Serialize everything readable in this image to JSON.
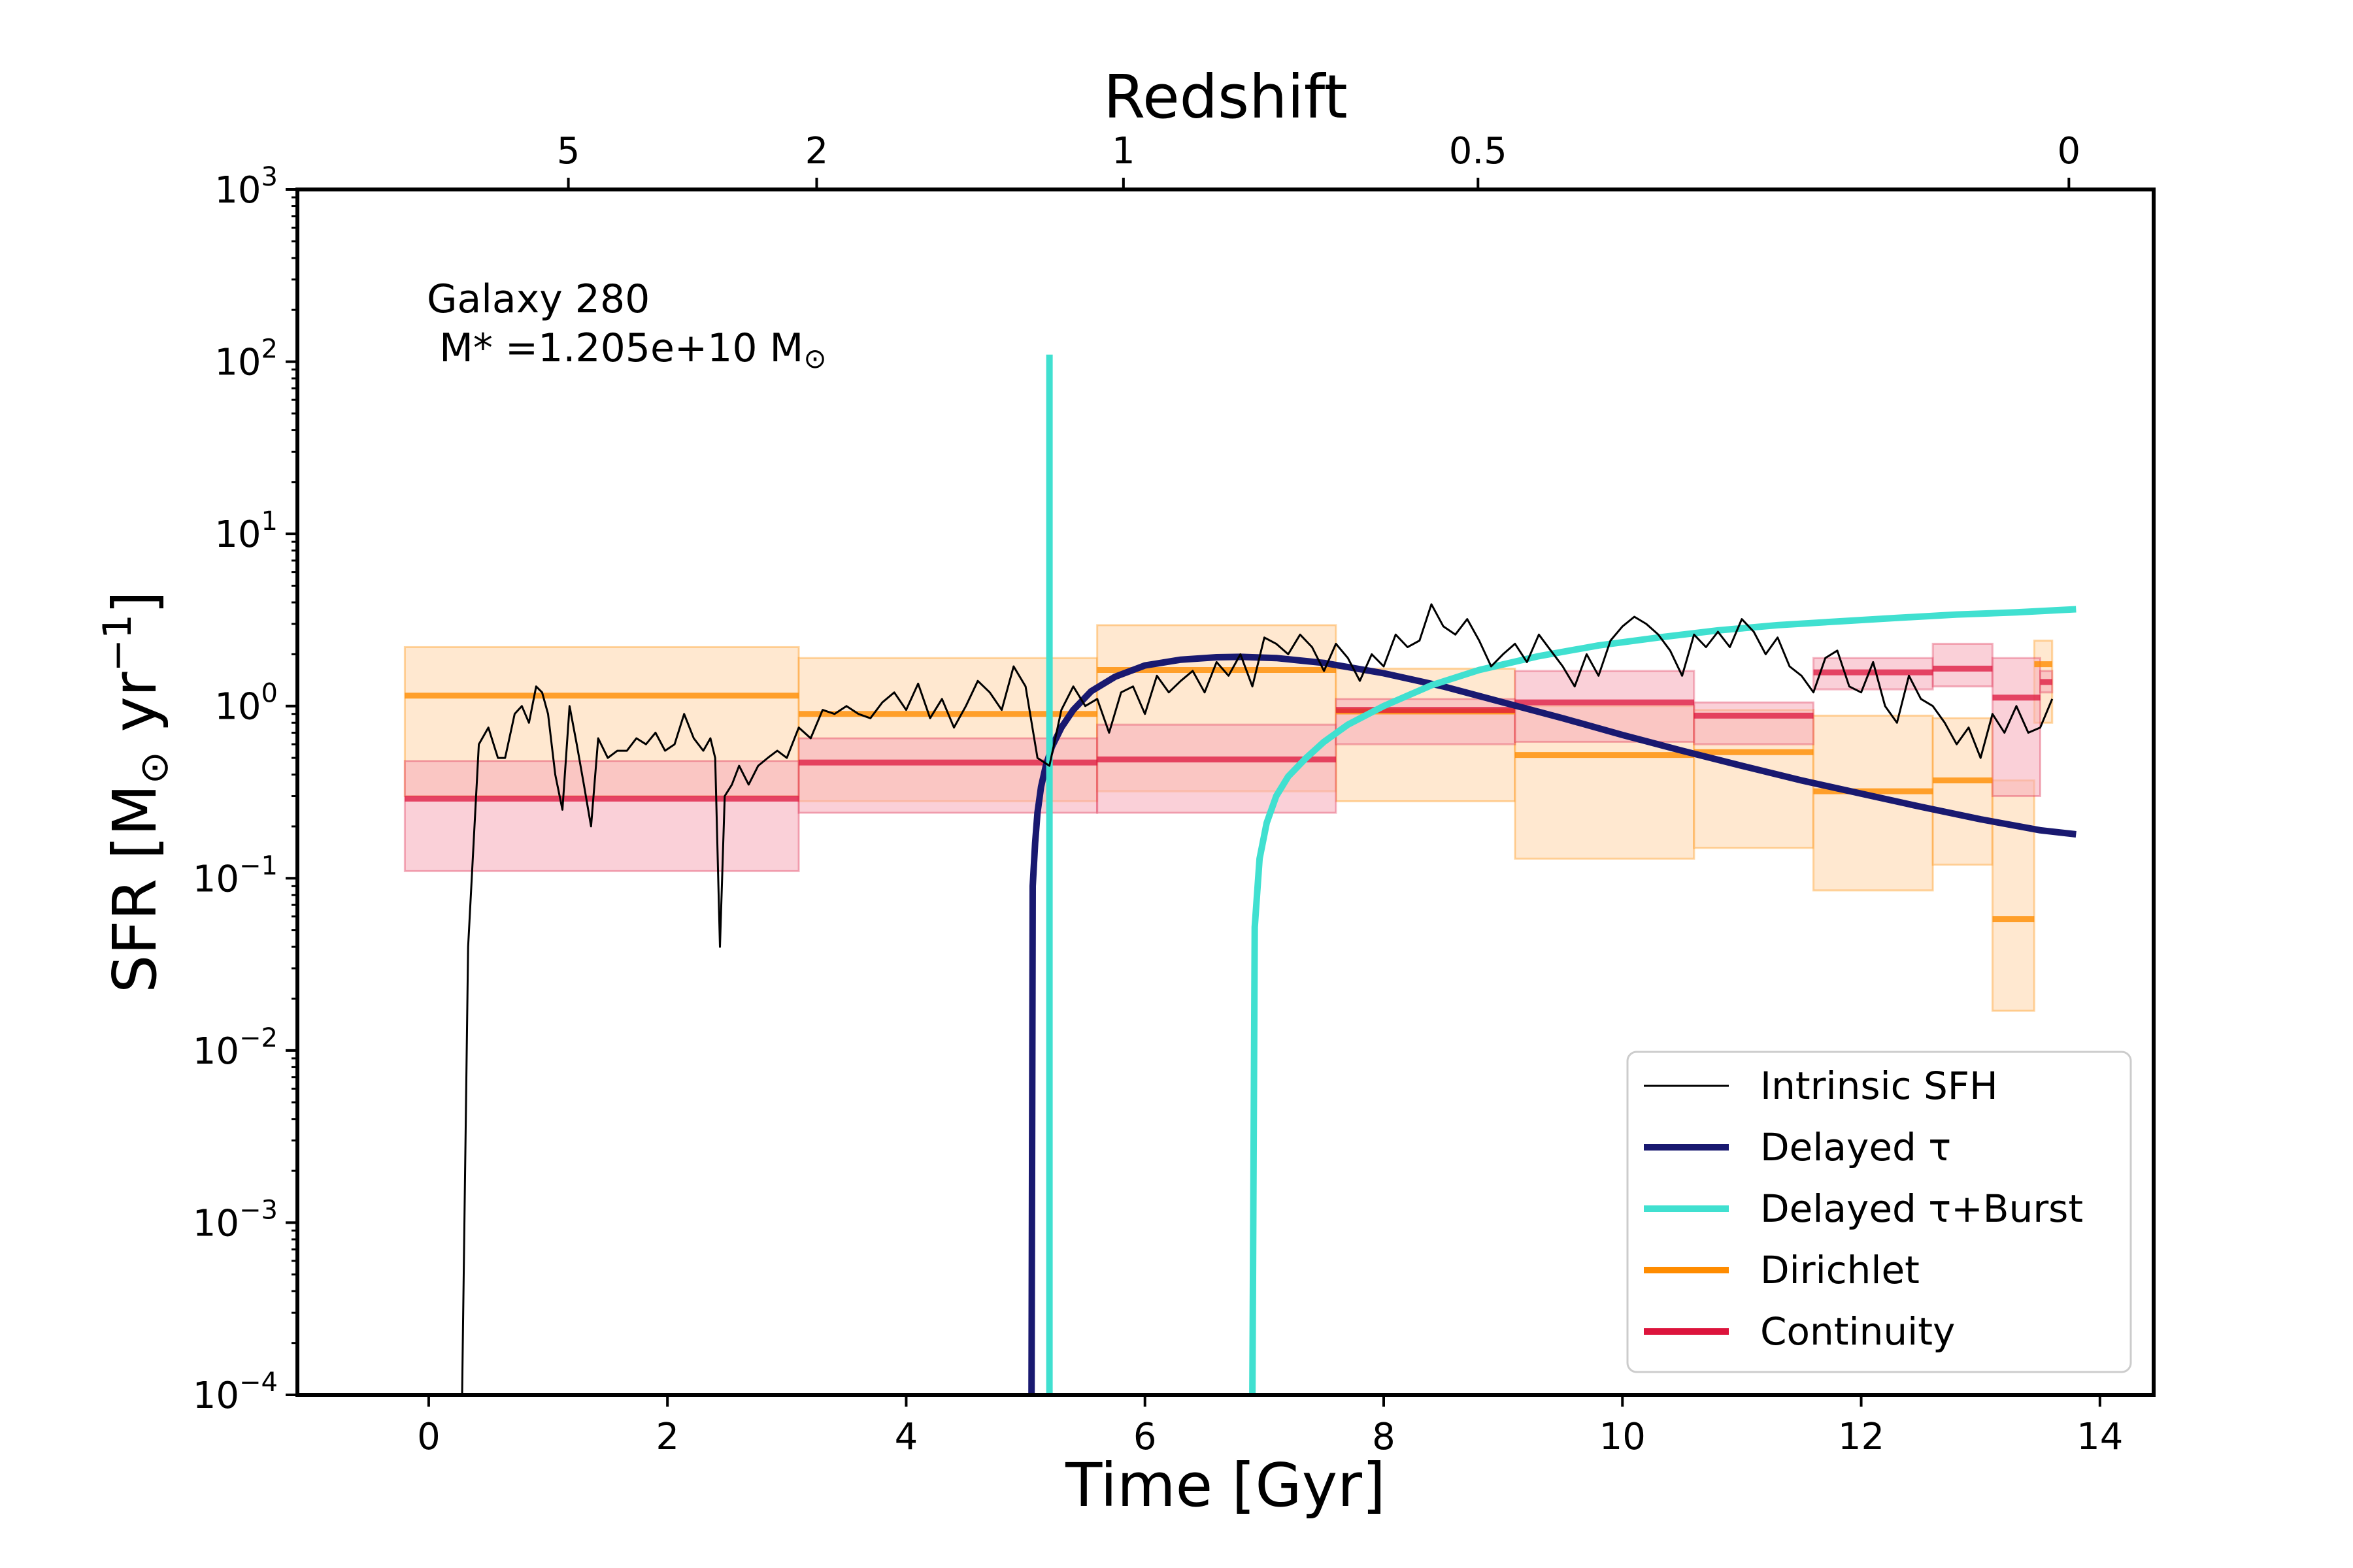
{
  "chart_data": {
    "type": "line",
    "xlabel": "Time [Gyr]",
    "top_axis_label": "Redshift",
    "ylabel_main": "SFR [M",
    "ylabel_sun": "⊙",
    "ylabel_mid": " yr",
    "ylabel_exp": "−1",
    "ylabel_end": "]",
    "xlim": [
      -1.1,
      14.45
    ],
    "ylim": [
      0.0001,
      1000
    ],
    "yscale": "log",
    "x_ticks": [
      0,
      2,
      4,
      6,
      8,
      10,
      12,
      14
    ],
    "x_tick_labels": [
      "0",
      "2",
      "4",
      "6",
      "8",
      "10",
      "12",
      "14"
    ],
    "y_ticks": [
      0.0001,
      0.001,
      0.01,
      0.1,
      1,
      10,
      100,
      1000
    ],
    "y_tick_exponents": [
      "−4",
      "−3",
      "−2",
      "−1",
      "0",
      "1",
      "2",
      "3"
    ],
    "y_tick_base": "10",
    "top_ticks": [
      {
        "time": 1.17,
        "label": "5"
      },
      {
        "time": 3.25,
        "label": "2"
      },
      {
        "time": 5.82,
        "label": "1"
      },
      {
        "time": 8.79,
        "label": "0.5"
      },
      {
        "time": 13.74,
        "label": "0"
      }
    ],
    "annotation_line1": "Galaxy 280",
    "annotation_line2": " M* =1.205e+10 M",
    "annotation_sun": "⊙",
    "legend": {
      "position": "lower right",
      "entries": [
        {
          "label": "Intrinsic SFH",
          "color": "#000000",
          "width": "thin"
        },
        {
          "label": "Delayed τ",
          "color": "#191970",
          "width": "thick"
        },
        {
          "label": "Delayed τ+Burst",
          "color": "#40e0d0",
          "width": "thick"
        },
        {
          "label": "Dirichlet",
          "color": "#ff8c00",
          "width": "thick"
        },
        {
          "label": "Continuity",
          "color": "#dc143c",
          "width": "thick"
        }
      ]
    },
    "series": [
      {
        "name": "Intrinsic SFH",
        "color": "#000000",
        "x": [
          0.28,
          0.33,
          0.42,
          0.5,
          0.58,
          0.64,
          0.72,
          0.78,
          0.84,
          0.9,
          0.95,
          1.0,
          1.06,
          1.12,
          1.18,
          1.24,
          1.3,
          1.36,
          1.42,
          1.5,
          1.58,
          1.66,
          1.74,
          1.82,
          1.9,
          1.98,
          2.06,
          2.14,
          2.22,
          2.3,
          2.36,
          2.4,
          2.44,
          2.48,
          2.54,
          2.6,
          2.68,
          2.76,
          2.84,
          2.92,
          3.0,
          3.1,
          3.2,
          3.3,
          3.4,
          3.5,
          3.6,
          3.7,
          3.8,
          3.9,
          4.0,
          4.1,
          4.2,
          4.3,
          4.4,
          4.5,
          4.6,
          4.7,
          4.8,
          4.9,
          5.0,
          5.1,
          5.2,
          5.3,
          5.4,
          5.5,
          5.6,
          5.7,
          5.8,
          5.9,
          6.0,
          6.1,
          6.2,
          6.3,
          6.4,
          6.5,
          6.6,
          6.7,
          6.8,
          6.9,
          7.0,
          7.1,
          7.2,
          7.3,
          7.4,
          7.5,
          7.6,
          7.7,
          7.8,
          7.9,
          8.0,
          8.1,
          8.2,
          8.3,
          8.4,
          8.5,
          8.6,
          8.7,
          8.8,
          8.9,
          9.0,
          9.1,
          9.2,
          9.3,
          9.4,
          9.5,
          9.6,
          9.7,
          9.8,
          9.9,
          10.0,
          10.1,
          10.2,
          10.3,
          10.4,
          10.5,
          10.6,
          10.7,
          10.8,
          10.9,
          11.0,
          11.1,
          11.2,
          11.3,
          11.4,
          11.5,
          11.6,
          11.7,
          11.8,
          11.9,
          12.0,
          12.1,
          12.2,
          12.3,
          12.4,
          12.5,
          12.6,
          12.7,
          12.8,
          12.9,
          13.0,
          13.1,
          13.2,
          13.3,
          13.4,
          13.5,
          13.6
        ],
        "y": [
          0.0001,
          0.04,
          0.6,
          0.75,
          0.5,
          0.5,
          0.9,
          1.0,
          0.8,
          1.3,
          1.2,
          0.9,
          0.4,
          0.25,
          1.0,
          0.6,
          0.35,
          0.2,
          0.65,
          0.5,
          0.55,
          0.55,
          0.65,
          0.6,
          0.7,
          0.55,
          0.6,
          0.9,
          0.65,
          0.55,
          0.65,
          0.5,
          0.04,
          0.3,
          0.35,
          0.45,
          0.35,
          0.45,
          0.5,
          0.55,
          0.5,
          0.75,
          0.65,
          0.95,
          0.9,
          1.0,
          0.9,
          0.85,
          1.05,
          1.2,
          0.95,
          1.35,
          0.85,
          1.1,
          0.75,
          1.0,
          1.4,
          1.2,
          0.95,
          1.7,
          1.3,
          0.5,
          0.45,
          0.95,
          1.3,
          1.0,
          1.1,
          0.7,
          1.2,
          1.3,
          0.9,
          1.5,
          1.2,
          1.4,
          1.6,
          1.2,
          1.8,
          1.5,
          2.0,
          1.3,
          2.5,
          2.3,
          2.0,
          2.6,
          2.2,
          1.6,
          2.3,
          1.9,
          1.4,
          2.0,
          1.7,
          2.6,
          2.2,
          2.4,
          3.9,
          2.9,
          2.6,
          3.2,
          2.4,
          1.7,
          2.0,
          2.3,
          1.8,
          2.6,
          2.1,
          1.7,
          1.3,
          2.0,
          1.5,
          2.4,
          2.9,
          3.3,
          3.0,
          2.6,
          2.1,
          1.5,
          2.6,
          2.2,
          2.7,
          2.2,
          3.2,
          2.7,
          2.0,
          2.5,
          1.7,
          1.5,
          1.2,
          1.9,
          2.1,
          1.3,
          1.2,
          1.8,
          1.0,
          0.8,
          1.5,
          1.1,
          1.0,
          0.8,
          0.6,
          0.75,
          0.5,
          0.9,
          0.7,
          1.0,
          0.7,
          0.75,
          1.1
        ]
      },
      {
        "name": "Delayed τ",
        "color": "#191970",
        "x": [
          5.05,
          5.06,
          5.08,
          5.1,
          5.13,
          5.17,
          5.22,
          5.3,
          5.4,
          5.55,
          5.75,
          6.0,
          6.3,
          6.6,
          6.8,
          7.1,
          7.5,
          8.0,
          8.5,
          9.0,
          9.5,
          10.0,
          10.5,
          11.0,
          11.5,
          12.0,
          12.5,
          13.0,
          13.5,
          13.8
        ],
        "y": [
          0.0001,
          0.09,
          0.16,
          0.24,
          0.34,
          0.45,
          0.58,
          0.75,
          0.95,
          1.22,
          1.48,
          1.72,
          1.86,
          1.92,
          1.93,
          1.9,
          1.78,
          1.55,
          1.3,
          1.05,
          0.85,
          0.68,
          0.55,
          0.45,
          0.37,
          0.31,
          0.26,
          0.22,
          0.19,
          0.18
        ]
      },
      {
        "name": "Delayed τ+Burst",
        "color": "#40e0d0",
        "x": [
          6.9,
          6.92,
          6.96,
          7.02,
          7.1,
          7.2,
          7.35,
          7.5,
          7.7,
          8.0,
          8.4,
          8.8,
          9.3,
          9.8,
          10.3,
          10.8,
          11.3,
          11.8,
          12.3,
          12.8,
          13.3,
          13.8
        ],
        "y": [
          0.0001,
          0.052,
          0.13,
          0.21,
          0.3,
          0.39,
          0.5,
          0.62,
          0.78,
          1.0,
          1.32,
          1.62,
          1.95,
          2.25,
          2.5,
          2.75,
          2.95,
          3.1,
          3.25,
          3.4,
          3.5,
          3.65
        ]
      },
      {
        "name": "Delayed τ+Burst spike",
        "color": "#40e0d0",
        "x": [
          5.2,
          5.2
        ],
        "y": [
          0.0001,
          110
        ]
      }
    ],
    "dirichlet_bins": [
      {
        "t0": -0.2,
        "t1": 3.1,
        "median": 1.15,
        "lo": 0.3,
        "hi": 2.2
      },
      {
        "t0": 3.1,
        "t1": 5.6,
        "median": 0.9,
        "lo": 0.28,
        "hi": 1.9
      },
      {
        "t0": 5.6,
        "t1": 7.6,
        "median": 1.62,
        "lo": 0.32,
        "hi": 2.95
      },
      {
        "t0": 7.6,
        "t1": 9.1,
        "median": 0.93,
        "lo": 0.28,
        "hi": 1.65
      },
      {
        "t0": 9.1,
        "t1": 10.6,
        "median": 0.52,
        "lo": 0.13,
        "hi": 1.0
      },
      {
        "t0": 10.6,
        "t1": 11.6,
        "median": 0.54,
        "lo": 0.15,
        "hi": 0.95
      },
      {
        "t0": 11.6,
        "t1": 12.6,
        "median": 0.32,
        "lo": 0.085,
        "hi": 0.88
      },
      {
        "t0": 12.6,
        "t1": 13.1,
        "median": 0.37,
        "lo": 0.12,
        "hi": 0.85
      },
      {
        "t0": 13.1,
        "t1": 13.45,
        "median": 0.058,
        "lo": 0.017,
        "hi": 0.37
      },
      {
        "t0": 13.45,
        "t1": 13.6,
        "median": 1.75,
        "lo": 0.8,
        "hi": 2.4
      }
    ],
    "continuity_bins": [
      {
        "t0": -0.2,
        "t1": 3.1,
        "median": 0.29,
        "lo": 0.11,
        "hi": 0.48
      },
      {
        "t0": 3.1,
        "t1": 5.6,
        "median": 0.47,
        "lo": 0.24,
        "hi": 0.65
      },
      {
        "t0": 5.6,
        "t1": 7.6,
        "median": 0.49,
        "lo": 0.24,
        "hi": 0.78
      },
      {
        "t0": 7.6,
        "t1": 9.1,
        "median": 0.95,
        "lo": 0.6,
        "hi": 1.1
      },
      {
        "t0": 9.1,
        "t1": 10.6,
        "median": 1.05,
        "lo": 0.62,
        "hi": 1.6
      },
      {
        "t0": 10.6,
        "t1": 11.6,
        "median": 0.88,
        "lo": 0.6,
        "hi": 1.05
      },
      {
        "t0": 11.6,
        "t1": 12.6,
        "median": 1.57,
        "lo": 1.25,
        "hi": 1.9
      },
      {
        "t0": 12.6,
        "t1": 13.1,
        "median": 1.65,
        "lo": 1.3,
        "hi": 2.3
      },
      {
        "t0": 13.1,
        "t1": 13.5,
        "median": 1.12,
        "lo": 0.3,
        "hi": 1.9
      },
      {
        "t0": 13.5,
        "t1": 13.6,
        "median": 1.38,
        "lo": 1.2,
        "hi": 1.6
      }
    ],
    "colors": {
      "dirichlet": "#ff8c00",
      "dirichlet_fill": "#ffe0c0",
      "continuity": "#dc143c",
      "continuity_fill": "#f5aab8"
    }
  }
}
